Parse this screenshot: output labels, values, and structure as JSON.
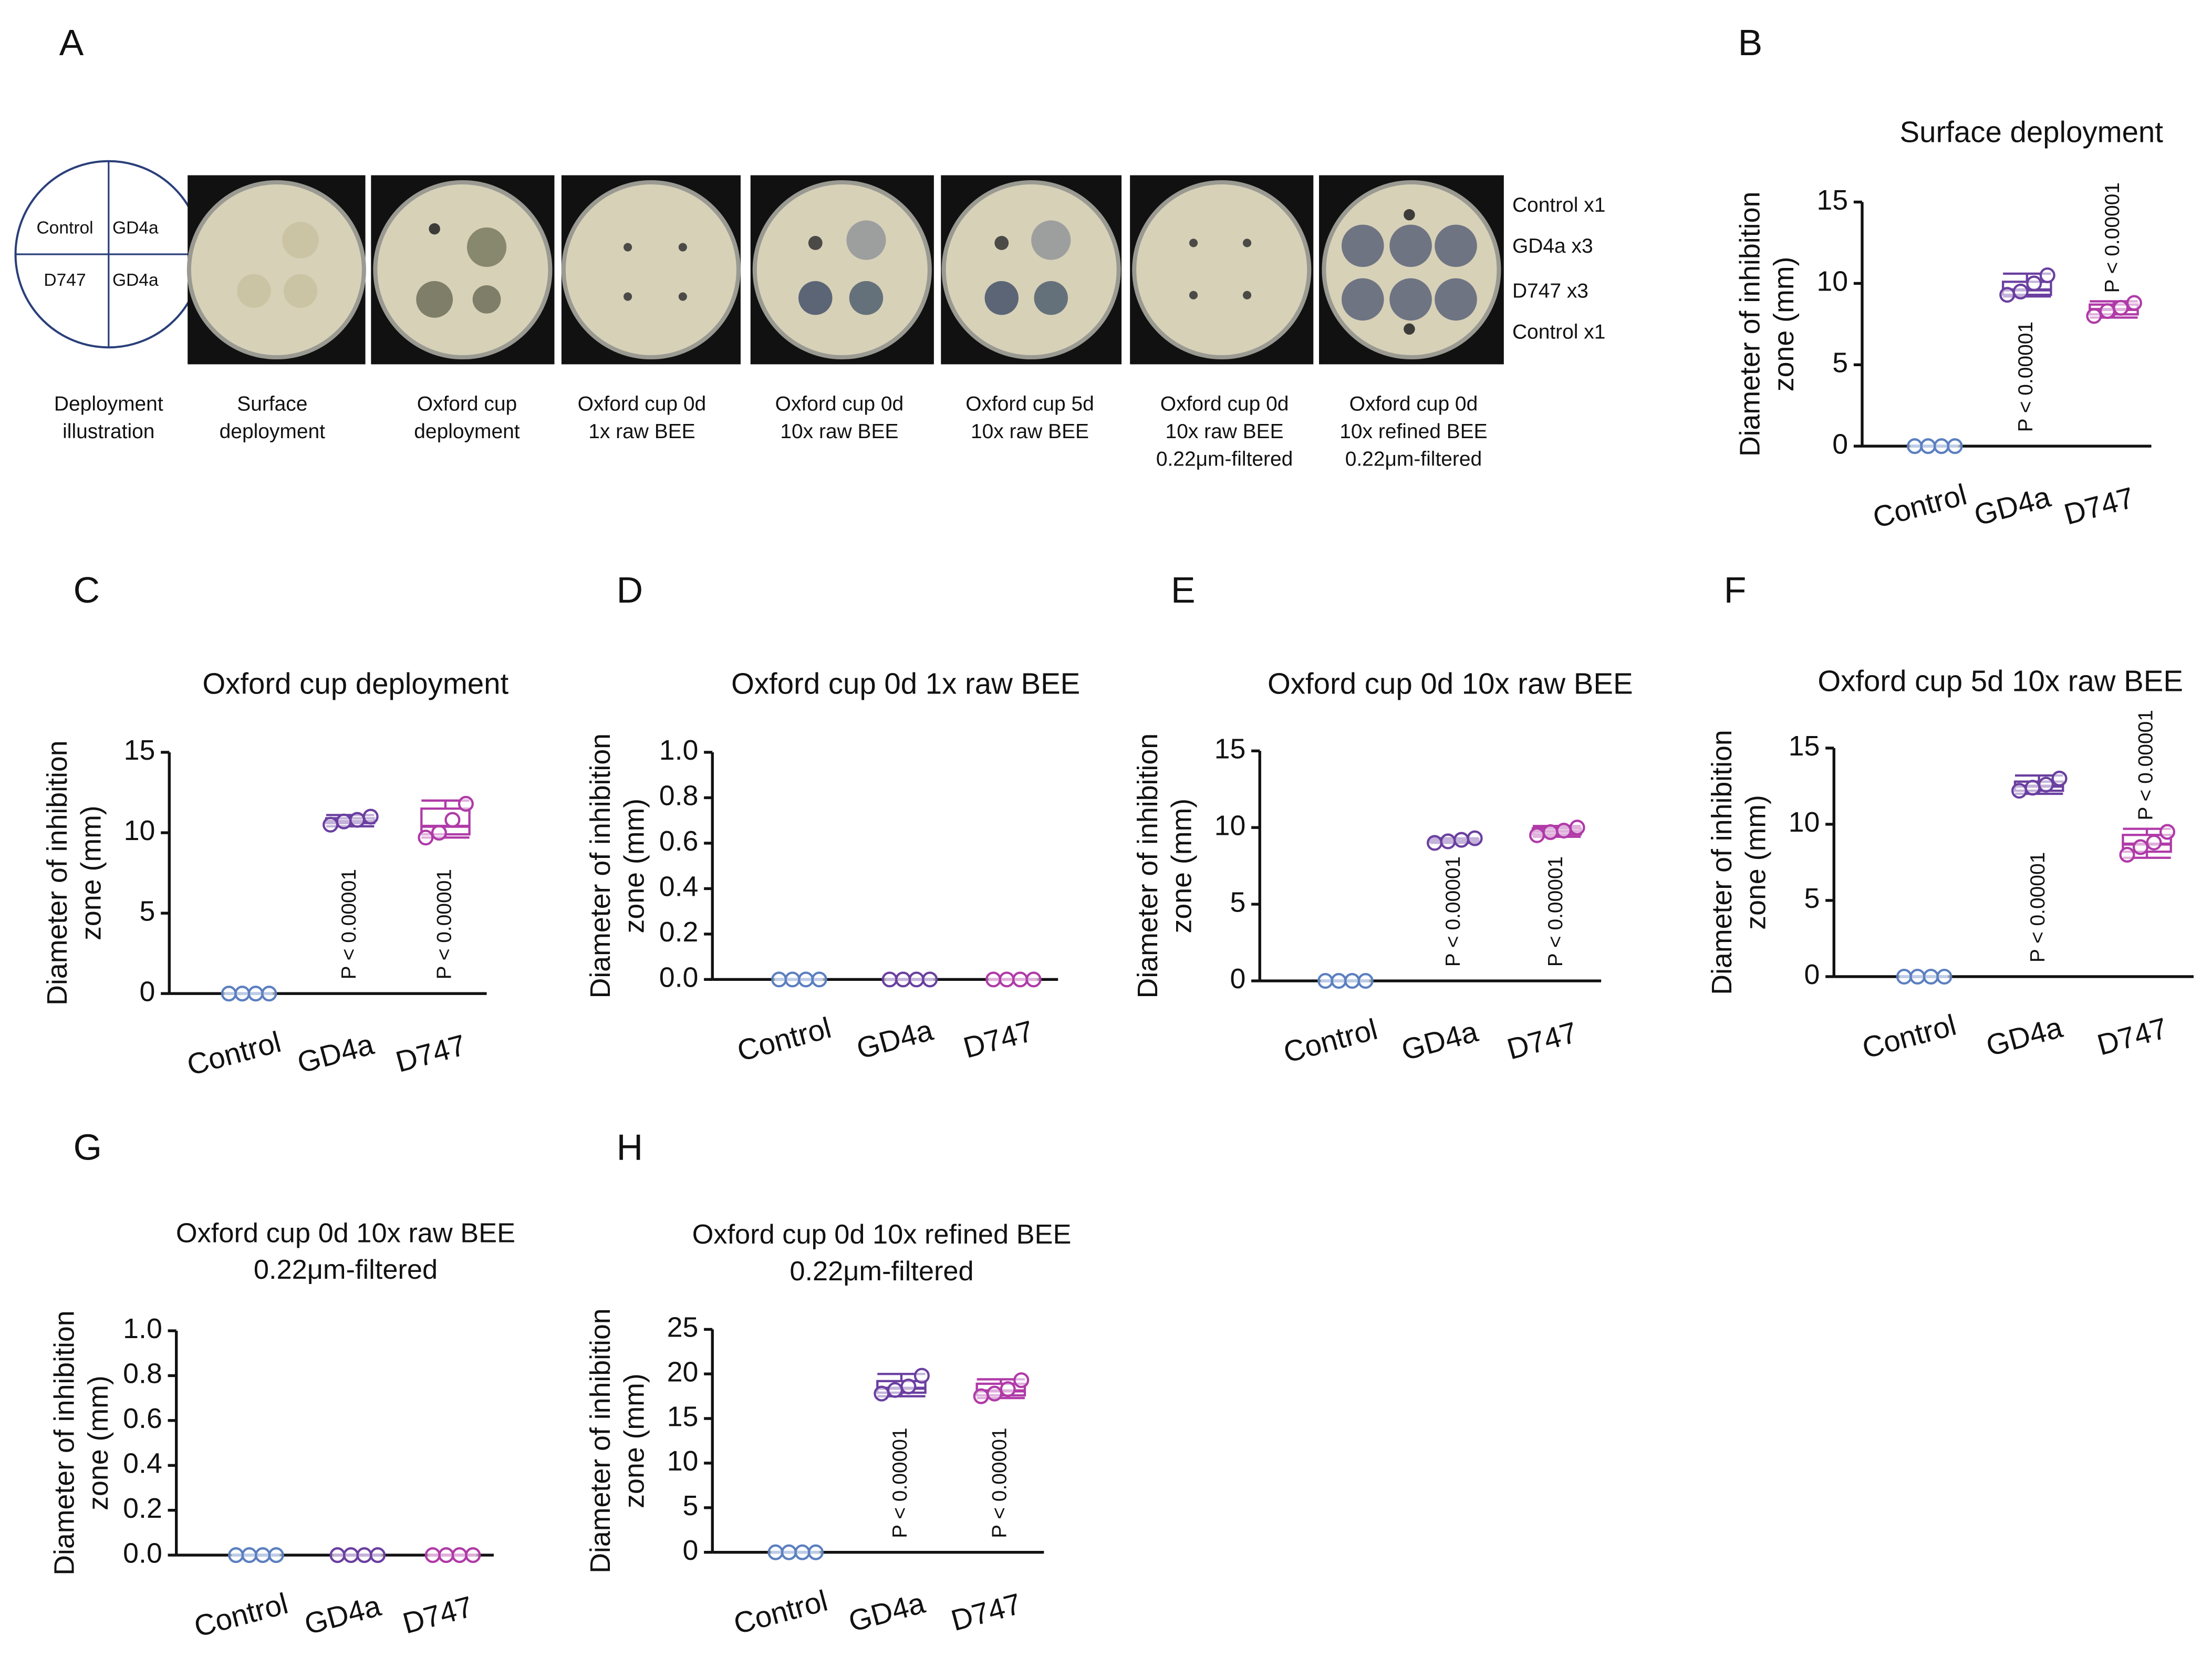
{
  "panel_a": {
    "letter": "A",
    "illustration": [
      "Control",
      "GD4a",
      "D747",
      "GD4a"
    ],
    "captions": [
      [
        "Deployment",
        "illustration"
      ],
      [
        "Surface",
        "deployment"
      ],
      [
        "Oxford cup",
        "deployment"
      ],
      [
        "Oxford cup 0d",
        "1x raw BEE"
      ],
      [
        "Oxford cup 0d",
        "10x raw BEE"
      ],
      [
        "Oxford cup 5d",
        "10x raw BEE"
      ],
      [
        "Oxford cup 0d",
        "10x raw BEE",
        "0.22μm-filtered"
      ],
      [
        "Oxford cup 0d",
        "10x refined BEE",
        "0.22μm-filtered"
      ]
    ],
    "plate_labels": [
      "Control x1",
      "GD4a x3",
      "D747 x3",
      "Control x1"
    ]
  },
  "chart_data": [
    {
      "type": "box",
      "letter": "B",
      "title": [
        "Surface deployment"
      ],
      "ylabel": [
        "Diameter of inhibition",
        "zone (mm)"
      ],
      "categories": [
        "Control",
        "GD4a",
        "D747"
      ],
      "colors": [
        "#5b7fc0",
        "#6a3fa0",
        "#b03aa8"
      ],
      "points": [
        [
          0,
          0,
          0,
          0
        ],
        [
          9.3,
          9.5,
          10.0,
          10.5
        ],
        [
          8.0,
          8.3,
          8.5,
          8.8
        ]
      ],
      "boxes": [
        {
          "min": 0,
          "q1": 0,
          "median": 0,
          "q3": 0,
          "max": 0
        },
        {
          "min": 9.2,
          "q1": 9.3,
          "median": 9.6,
          "q3": 10.1,
          "max": 10.6
        },
        {
          "min": 7.9,
          "q1": 8.1,
          "median": 8.4,
          "q3": 8.7,
          "max": 8.9
        }
      ],
      "annotations": [
        null,
        "P < 0.00001",
        "P < 0.00001"
      ],
      "annotation_sides": [
        null,
        "below",
        "above"
      ],
      "ylim": [
        0,
        15
      ],
      "yticks": [
        0,
        5,
        10,
        15
      ]
    },
    {
      "type": "box",
      "letter": "C",
      "title": [
        "Oxford cup deployment"
      ],
      "ylabel": [
        "Diameter of inhibition",
        "zone (mm)"
      ],
      "categories": [
        "Control",
        "GD4a",
        "D747"
      ],
      "colors": [
        "#5b7fc0",
        "#6a3fa0",
        "#b03aa8"
      ],
      "points": [
        [
          0,
          0,
          0,
          0
        ],
        [
          10.5,
          10.7,
          10.8,
          11.0
        ],
        [
          9.7,
          10.0,
          10.8,
          11.8
        ]
      ],
      "boxes": [
        {
          "min": 0,
          "q1": 0,
          "median": 0,
          "q3": 0,
          "max": 0
        },
        {
          "min": 10.4,
          "q1": 10.6,
          "median": 10.7,
          "q3": 10.9,
          "max": 11.1
        },
        {
          "min": 9.7,
          "q1": 9.9,
          "median": 10.4,
          "q3": 11.5,
          "max": 12.0
        }
      ],
      "annotations": [
        null,
        "P < 0.00001",
        "P < 0.00001"
      ],
      "annotation_sides": [
        null,
        "below",
        "below"
      ],
      "ylim": [
        0,
        15
      ],
      "yticks": [
        0,
        5,
        10,
        15
      ]
    },
    {
      "type": "box",
      "letter": "D",
      "title": [
        "Oxford cup 0d 1x raw BEE"
      ],
      "ylabel": [
        "Diameter of inhibition",
        "zone (mm)"
      ],
      "categories": [
        "Control",
        "GD4a",
        "D747"
      ],
      "colors": [
        "#5b7fc0",
        "#6a3fa0",
        "#b03aa8"
      ],
      "points": [
        [
          0,
          0,
          0,
          0
        ],
        [
          0,
          0,
          0,
          0
        ],
        [
          0,
          0,
          0,
          0
        ]
      ],
      "boxes": [
        {
          "min": 0,
          "q1": 0,
          "median": 0,
          "q3": 0,
          "max": 0
        },
        {
          "min": 0,
          "q1": 0,
          "median": 0,
          "q3": 0,
          "max": 0
        },
        {
          "min": 0,
          "q1": 0,
          "median": 0,
          "q3": 0,
          "max": 0
        }
      ],
      "annotations": [
        null,
        null,
        null
      ],
      "annotation_sides": [
        null,
        null,
        null
      ],
      "ylim": [
        0,
        1
      ],
      "yticks": [
        {
          "value": 0,
          "label": "0.0"
        },
        0.2,
        0.4,
        0.6,
        0.8,
        {
          "value": 1,
          "label": "1.0"
        }
      ]
    },
    {
      "type": "box",
      "letter": "E",
      "title": [
        "Oxford cup 0d 10x raw BEE"
      ],
      "ylabel": [
        "Diameter of inhibition",
        "zone (mm)"
      ],
      "categories": [
        "Control",
        "GD4a",
        "D747"
      ],
      "colors": [
        "#5b7fc0",
        "#6a3fa0",
        "#b03aa8"
      ],
      "points": [
        [
          0,
          0,
          0,
          0
        ],
        [
          9.0,
          9.1,
          9.2,
          9.3
        ],
        [
          9.5,
          9.7,
          9.8,
          10.0
        ]
      ],
      "boxes": [
        {
          "min": 0,
          "q1": 0,
          "median": 0,
          "q3": 0,
          "max": 0
        },
        {
          "min": 9.0,
          "q1": 9.05,
          "median": 9.15,
          "q3": 9.25,
          "max": 9.3
        },
        {
          "min": 9.4,
          "q1": 9.55,
          "median": 9.75,
          "q3": 9.95,
          "max": 10.1
        }
      ],
      "annotations": [
        null,
        "P < 0.00001",
        "P < 0.00001"
      ],
      "annotation_sides": [
        null,
        "below",
        "below"
      ],
      "ylim": [
        0,
        15
      ],
      "yticks": [
        0,
        5,
        10,
        15
      ]
    },
    {
      "type": "box",
      "letter": "F",
      "title": [
        "Oxford cup 5d 10x raw BEE"
      ],
      "ylabel": [
        "Diameter of inhibition",
        "zone (mm)"
      ],
      "categories": [
        "Control",
        "GD4a",
        "D747"
      ],
      "colors": [
        "#5b7fc0",
        "#6a3fa0",
        "#b03aa8"
      ],
      "points": [
        [
          0,
          0,
          0,
          0
        ],
        [
          12.2,
          12.4,
          12.6,
          13.0
        ],
        [
          8.0,
          8.5,
          8.8,
          9.5
        ]
      ],
      "boxes": [
        {
          "min": 0,
          "q1": 0,
          "median": 0,
          "q3": 0,
          "max": 0
        },
        {
          "min": 12.0,
          "q1": 12.2,
          "median": 12.5,
          "q3": 12.8,
          "max": 13.2
        },
        {
          "min": 7.8,
          "q1": 8.2,
          "median": 8.7,
          "q3": 9.3,
          "max": 9.7
        }
      ],
      "annotations": [
        null,
        "P < 0.00001",
        "P < 0.00001"
      ],
      "annotation_sides": [
        null,
        "below",
        "above"
      ],
      "ylim": [
        0,
        15
      ],
      "yticks": [
        0,
        5,
        10,
        15
      ]
    },
    {
      "type": "box",
      "letter": "G",
      "title": [
        "Oxford cup 0d 10x raw BEE",
        "0.22μm-filtered"
      ],
      "ylabel": [
        "Diameter of inhibition",
        "zone (mm)"
      ],
      "categories": [
        "Control",
        "GD4a",
        "D747"
      ],
      "colors": [
        "#5b7fc0",
        "#6a3fa0",
        "#b03aa8"
      ],
      "points": [
        [
          0,
          0,
          0,
          0
        ],
        [
          0,
          0,
          0,
          0
        ],
        [
          0,
          0,
          0,
          0
        ]
      ],
      "boxes": [
        {
          "min": 0,
          "q1": 0,
          "median": 0,
          "q3": 0,
          "max": 0
        },
        {
          "min": 0,
          "q1": 0,
          "median": 0,
          "q3": 0,
          "max": 0
        },
        {
          "min": 0,
          "q1": 0,
          "median": 0,
          "q3": 0,
          "max": 0
        }
      ],
      "annotations": [
        null,
        null,
        null
      ],
      "annotation_sides": [
        null,
        null,
        null
      ],
      "ylim": [
        0,
        1
      ],
      "yticks": [
        {
          "value": 0,
          "label": "0.0"
        },
        0.2,
        0.4,
        0.6,
        0.8,
        {
          "value": 1,
          "label": "1.0"
        }
      ]
    },
    {
      "type": "box",
      "letter": "H",
      "title": [
        "Oxford cup 0d 10x refined BEE",
        "0.22μm-filtered"
      ],
      "ylabel": [
        "Diameter of inhibition",
        "zone (mm)"
      ],
      "categories": [
        "Control",
        "GD4a",
        "D747"
      ],
      "colors": [
        "#5b7fc0",
        "#6a3fa0",
        "#b03aa8"
      ],
      "points": [
        [
          0,
          0,
          0,
          0
        ],
        [
          17.8,
          18.2,
          18.6,
          19.8
        ],
        [
          17.5,
          17.8,
          18.3,
          19.3
        ]
      ],
      "boxes": [
        {
          "min": 0,
          "q1": 0,
          "median": 0,
          "q3": 0,
          "max": 0
        },
        {
          "min": 17.5,
          "q1": 17.9,
          "median": 18.4,
          "q3": 19.2,
          "max": 20.0
        },
        {
          "min": 17.3,
          "q1": 17.6,
          "median": 18.1,
          "q3": 18.9,
          "max": 19.4
        }
      ],
      "annotations": [
        null,
        "P < 0.00001",
        "P < 0.00001"
      ],
      "annotation_sides": [
        null,
        "below",
        "below"
      ],
      "ylim": [
        0,
        25
      ],
      "yticks": [
        0,
        5,
        10,
        15,
        20,
        25
      ]
    }
  ]
}
